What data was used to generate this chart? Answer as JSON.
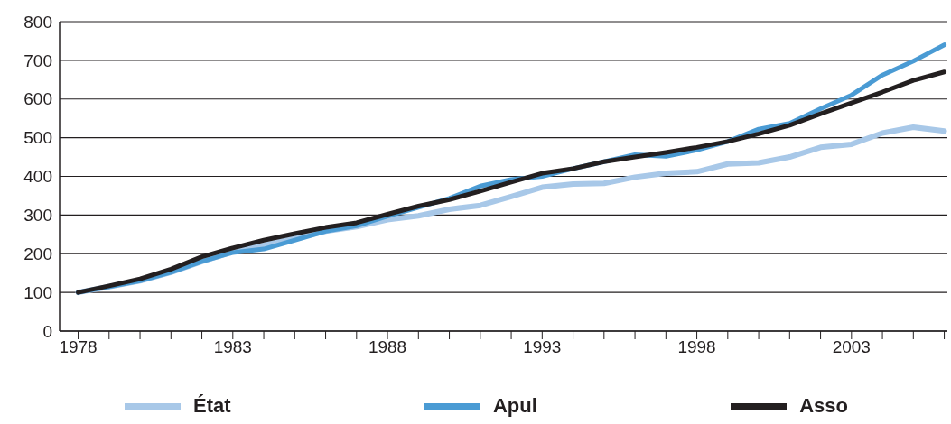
{
  "chart_data": {
    "type": "line",
    "x": [
      1978,
      1979,
      1980,
      1981,
      1982,
      1983,
      1984,
      1985,
      1986,
      1987,
      1988,
      1989,
      1990,
      1991,
      1992,
      1993,
      1994,
      1995,
      1996,
      1997,
      1998,
      1999,
      2000,
      2001,
      2002,
      2003,
      2004,
      2005,
      2006
    ],
    "series": [
      {
        "name": "État",
        "color": "#a8c8e8",
        "values": [
          100,
          115,
          130,
          152,
          180,
          205,
          222,
          240,
          258,
          270,
          288,
          298,
          315,
          325,
          348,
          372,
          380,
          382,
          398,
          408,
          412,
          432,
          435,
          450,
          475,
          483,
          512,
          527,
          517
        ]
      },
      {
        "name": "Apul",
        "color": "#4a9bd4",
        "values": [
          100,
          115,
          130,
          152,
          180,
          203,
          212,
          235,
          258,
          272,
          297,
          320,
          343,
          375,
          392,
          400,
          420,
          438,
          456,
          452,
          468,
          490,
          522,
          537,
          575,
          610,
          662,
          698,
          740
        ]
      },
      {
        "name": "Asso",
        "color": "#231f20",
        "values": [
          100,
          117,
          135,
          160,
          192,
          215,
          235,
          252,
          268,
          280,
          302,
          323,
          340,
          362,
          385,
          408,
          420,
          438,
          450,
          462,
          475,
          490,
          510,
          532,
          562,
          590,
          618,
          648,
          670
        ]
      }
    ],
    "xlim": [
      1977.4,
      2006.1
    ],
    "xticks": [
      1978,
      {
        "value": 1979,
        "label": null
      },
      {
        "value": 1980,
        "label": null
      },
      {
        "value": 1981,
        "label": null
      },
      {
        "value": 1982,
        "label": null
      },
      1983,
      {
        "value": 1984,
        "label": null
      },
      {
        "value": 1985,
        "label": null
      },
      {
        "value": 1986,
        "label": null
      },
      {
        "value": 1987,
        "label": null
      },
      1988,
      {
        "value": 1989,
        "label": null
      },
      {
        "value": 1990,
        "label": null
      },
      {
        "value": 1991,
        "label": null
      },
      {
        "value": 1992,
        "label": null
      },
      1993,
      {
        "value": 1994,
        "label": null
      },
      {
        "value": 1995,
        "label": null
      },
      {
        "value": 1996,
        "label": null
      },
      {
        "value": 1997,
        "label": null
      },
      1998,
      {
        "value": 1999,
        "label": null
      },
      {
        "value": 2000,
        "label": null
      },
      {
        "value": 2001,
        "label": null
      },
      {
        "value": 2002,
        "label": null
      },
      2003,
      {
        "value": 2004,
        "label": null
      },
      {
        "value": 2005,
        "label": null
      },
      {
        "value": 2006,
        "label": null
      }
    ],
    "ylim": [
      0,
      800
    ],
    "yticks": [
      0,
      100,
      200,
      300,
      400,
      500,
      600,
      700,
      800
    ],
    "grid": "y",
    "legend": "bottom",
    "marker": "none",
    "line_style": "solid"
  }
}
